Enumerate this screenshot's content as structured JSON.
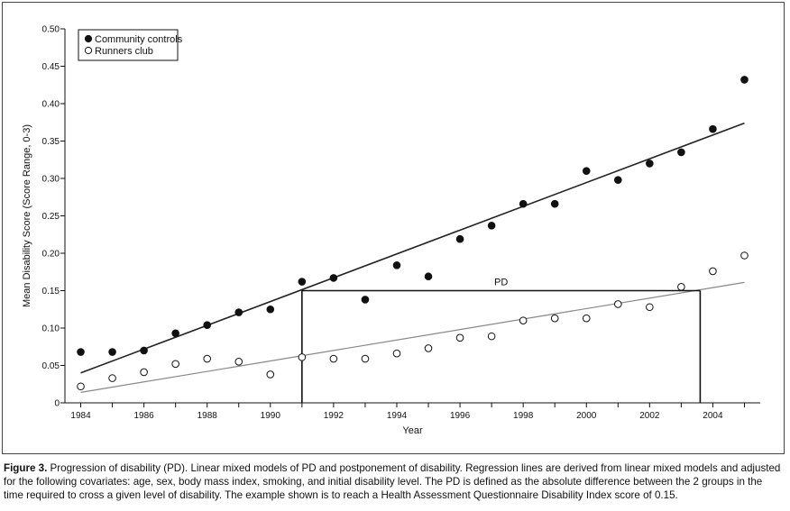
{
  "chart_data": {
    "type": "scatter",
    "xlabel": "Year",
    "ylabel": "Mean Disability Score (Score Range, 0-3)",
    "xlim": [
      1983.5,
      2005.5
    ],
    "ylim": [
      0,
      0.5
    ],
    "x_ticks": [
      "1984",
      "1986",
      "1988",
      "1990",
      "1992",
      "1994",
      "1996",
      "1998",
      "2000",
      "2002",
      "2004"
    ],
    "y_ticks": [
      "0",
      "0.05",
      "0.10",
      "0.15",
      "0.20",
      "0.25",
      "0.30",
      "0.35",
      "0.40",
      "0.45",
      "0.50"
    ],
    "legend_position": "top-left",
    "series": [
      {
        "name": "Community controls",
        "marker": "filled-circle",
        "color": "#111111",
        "x": [
          1984,
          1985,
          1986,
          1987,
          1988,
          1989,
          1990,
          1991,
          1992,
          1993,
          1994,
          1995,
          1996,
          1997,
          1998,
          1999,
          2000,
          2001,
          2002,
          2003,
          2004,
          2005
        ],
        "y": [
          0.068,
          0.068,
          0.07,
          0.093,
          0.104,
          0.121,
          0.125,
          0.162,
          0.167,
          0.138,
          0.184,
          0.169,
          0.219,
          0.237,
          0.266,
          0.266,
          0.31,
          0.298,
          0.32,
          0.335,
          0.366,
          0.432
        ],
        "regression": {
          "x": [
            1984,
            2005
          ],
          "y": [
            0.04,
            0.374
          ],
          "color": "#222222"
        }
      },
      {
        "name": "Runners club",
        "marker": "open-circle",
        "color": "#111111",
        "x": [
          1984,
          1985,
          1986,
          1987,
          1988,
          1989,
          1990,
          1991,
          1992,
          1993,
          1994,
          1995,
          1996,
          1997,
          1998,
          1999,
          2000,
          2001,
          2002,
          2003,
          2004,
          2005
        ],
        "y": [
          0.022,
          0.033,
          0.041,
          0.052,
          0.059,
          0.055,
          0.038,
          0.061,
          0.059,
          0.059,
          0.066,
          0.073,
          0.087,
          0.089,
          0.11,
          0.113,
          0.113,
          0.132,
          0.128,
          0.155,
          0.176,
          0.197
        ],
        "regression": {
          "x": [
            1984,
            2005
          ],
          "y": [
            0.014,
            0.161
          ],
          "color": "#888888"
        }
      }
    ],
    "annotations": [
      {
        "text": "PD",
        "level": 0.15,
        "x_start": 1991,
        "x_end": 2003.6
      }
    ]
  },
  "caption": {
    "label": "Figure 3.",
    "text": " Progression of disability (PD). Linear mixed models of PD and postponement of disability. Regression lines are derived from linear mixed models and adjusted for the following covariates: age, sex, body mass index, smoking, and initial disability level. The PD is defined as the absolute difference between the 2 groups in the time required to cross a given level of disability. The example shown is to reach a Health Assessment Questionnaire Disability Index score of 0.15."
  }
}
